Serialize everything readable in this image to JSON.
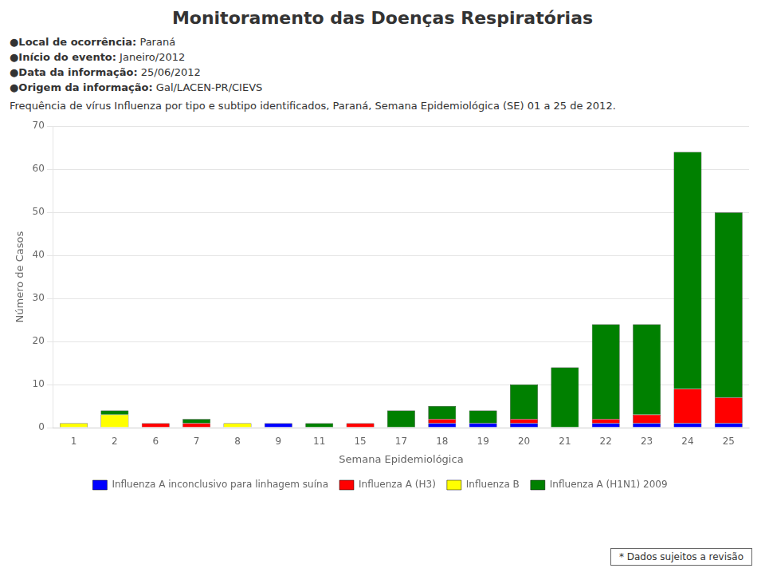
{
  "chart_data": {
    "type": "bar",
    "stacked": true,
    "title": "Monitoramento das Doenças Respiratórias",
    "subtitle": "Frequência de vírus Influenza por tipo e subtipo identificados, Paraná, Semana Epidemiológica (SE) 01 a 25 de 2012.",
    "annotations": [
      "●Local de ocorrência: Paraná",
      "●Início do evento: Janeiro/2012",
      "●Data da informação: 25/06/2012",
      "●Origem da informação: Gal/LACEN-PR/CIEVS",
      "* Dados sujeitos a revisão"
    ],
    "xlabel": "Semana Epidemiológica",
    "ylabel": "Número de Casos",
    "categories": [
      "1",
      "2",
      "6",
      "7",
      "8",
      "9",
      "11",
      "15",
      "17",
      "18",
      "19",
      "20",
      "21",
      "22",
      "23",
      "24",
      "25"
    ],
    "series": [
      {
        "name": "Influenza A inconclusivo para linhagem suína",
        "color": "#0000FF",
        "values": [
          0,
          0,
          0,
          0,
          0,
          1,
          0,
          0,
          0,
          1,
          1,
          1,
          0,
          1,
          1,
          1,
          1
        ]
      },
      {
        "name": "Influenza A (H3)",
        "color": "#FF0000",
        "values": [
          0,
          0,
          1,
          1,
          0,
          0,
          0,
          1,
          0,
          1,
          0,
          1,
          0,
          1,
          2,
          8,
          6
        ]
      },
      {
        "name": "Influenza B",
        "color": "#FFFF00",
        "values": [
          1,
          3,
          0,
          0,
          1,
          0,
          0,
          0,
          0,
          0,
          0,
          0,
          0,
          0,
          0,
          0,
          0
        ]
      },
      {
        "name": "Influenza A (H1N1) 2009",
        "color": "#008000",
        "values": [
          0,
          1,
          0,
          1,
          0,
          0,
          1,
          0,
          4,
          3,
          3,
          8,
          14,
          22,
          21,
          55,
          43
        ]
      }
    ],
    "ylim": [
      0,
      70
    ],
    "yticks": [
      0,
      10,
      20,
      30,
      40,
      50,
      60,
      70
    ],
    "grid": true,
    "legend": "bottom"
  }
}
